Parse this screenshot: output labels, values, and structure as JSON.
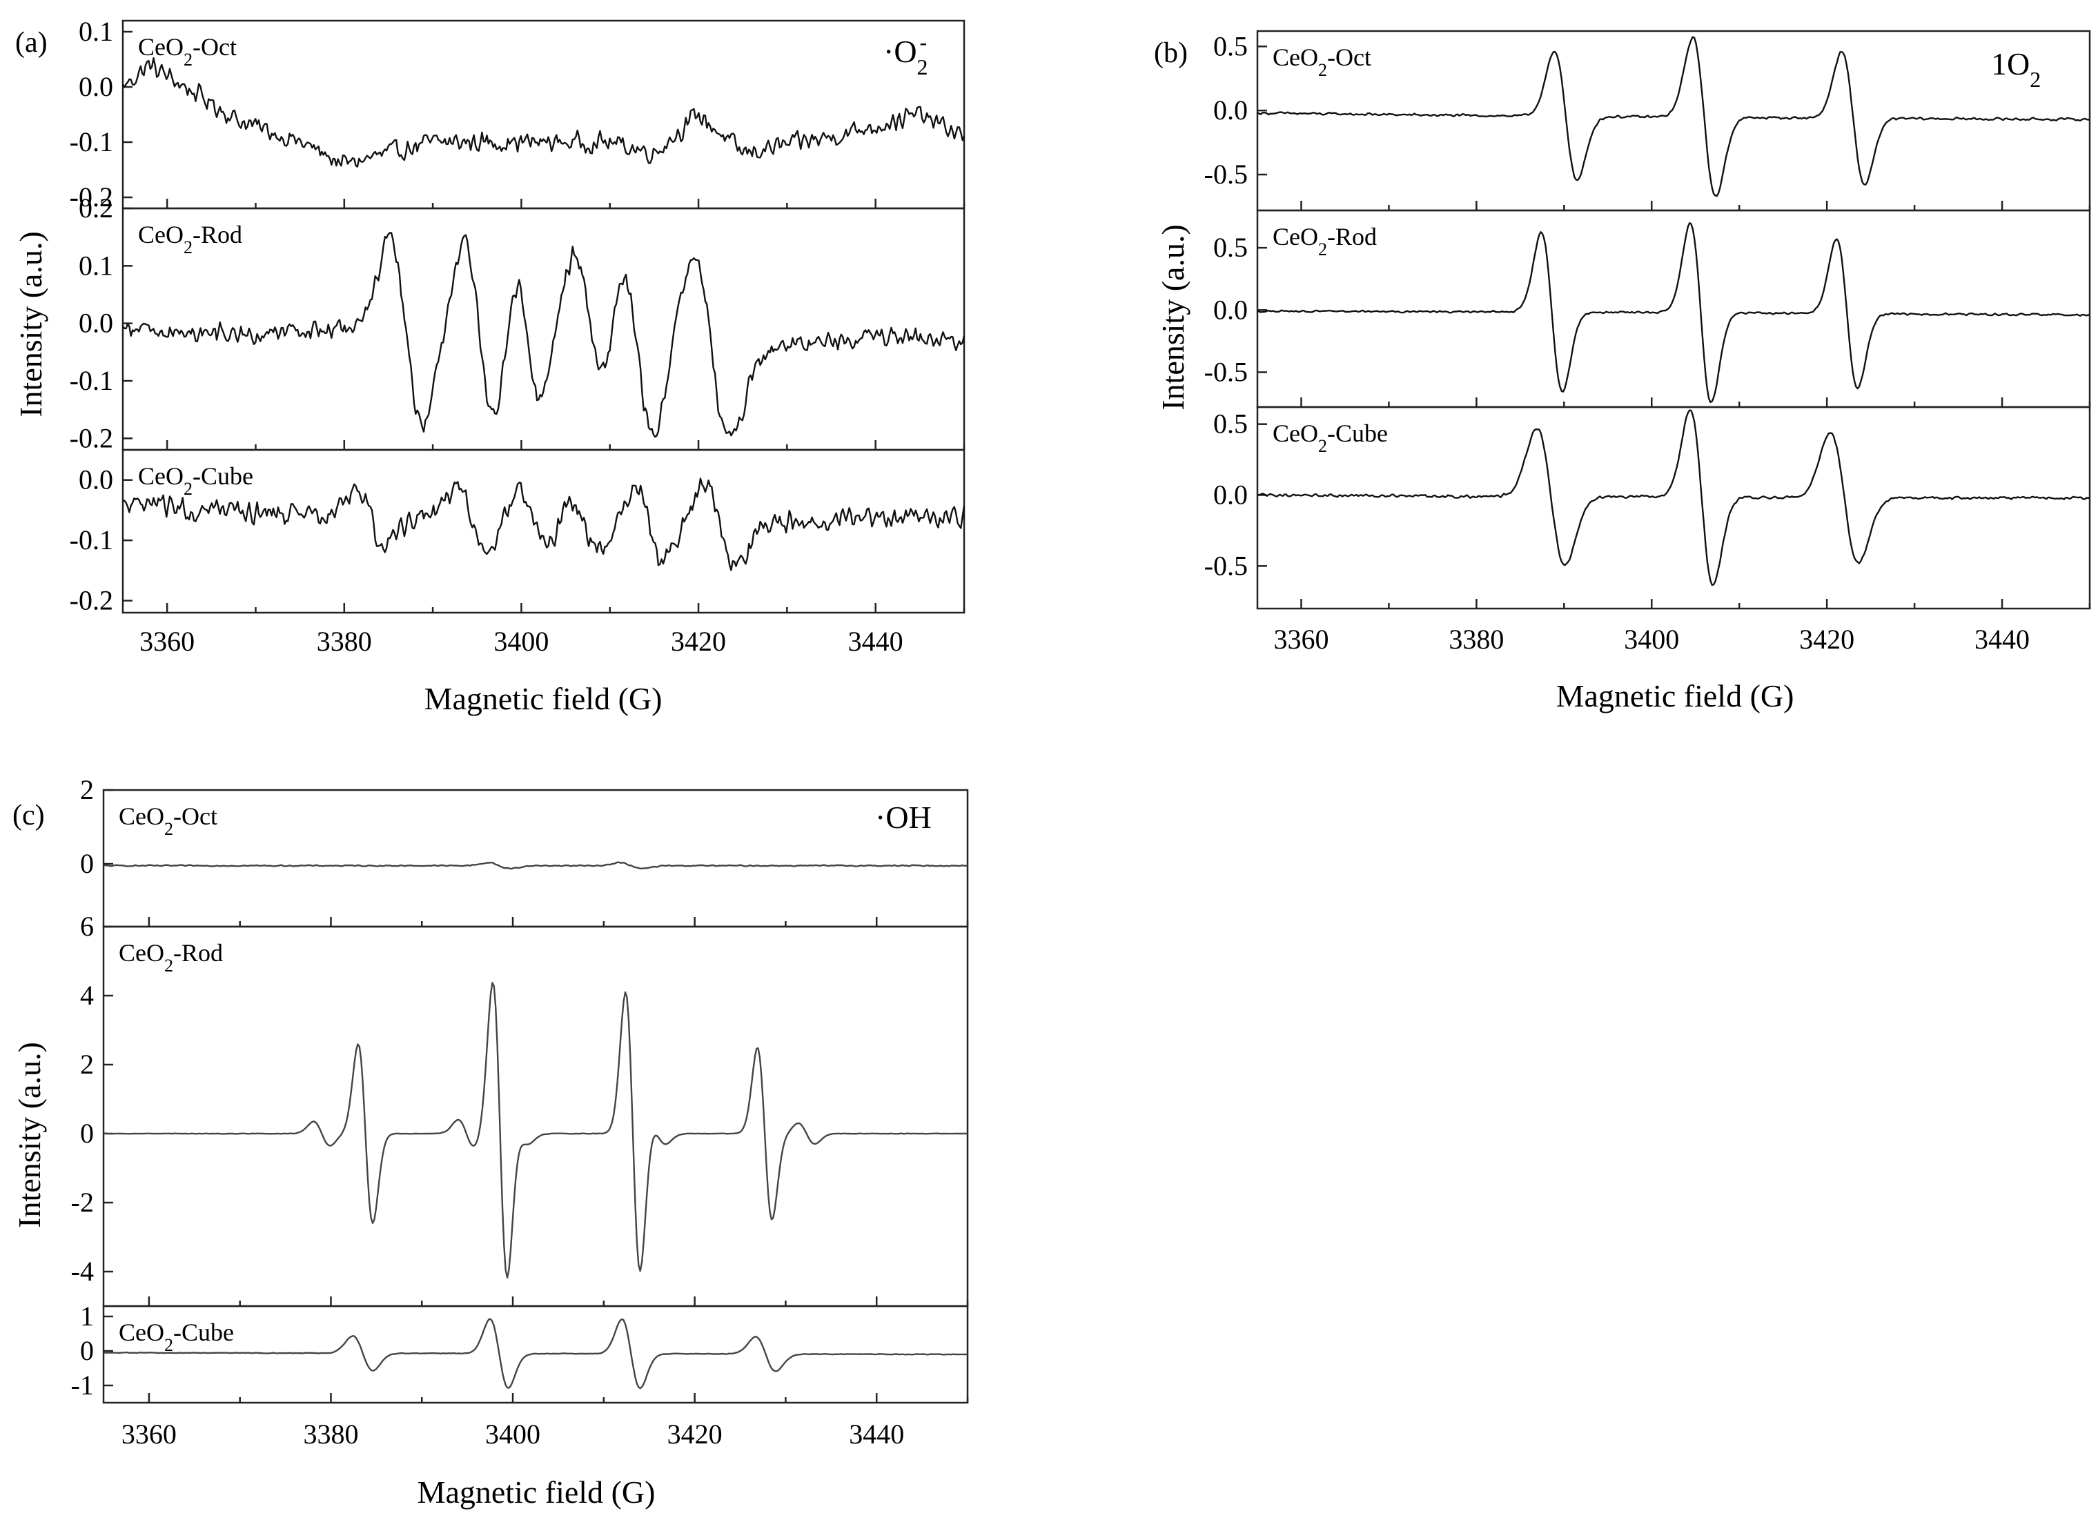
{
  "figure": {
    "panels": [
      {
        "panel_label": "(a)",
        "species_label": {
          "base": "·O",
          "sub": "2",
          "sup": "-"
        },
        "xlabel": "Magnetic field (G)",
        "ylabel": "Intensity (a.u.)"
      },
      {
        "panel_label": "(b)",
        "species_label": {
          "base": "1O",
          "sub": "2",
          "sup": ""
        },
        "xlabel": "Magnetic field (G)",
        "ylabel": "Intensity (a.u.)"
      },
      {
        "panel_label": "(c)",
        "species_label": {
          "base": "·OH",
          "sub": "",
          "sup": ""
        },
        "xlabel": "Magnetic field (G)",
        "ylabel": "Intensity (a.u.)"
      }
    ]
  },
  "chart_data": [
    {
      "type": "line",
      "panel": "(a)",
      "xlabel": "Magnetic field (G)",
      "ylabel": "Intensity (a.u.)",
      "xlim": [
        3355,
        3450
      ],
      "xticks": [
        3360,
        3380,
        3400,
        3420,
        3440
      ],
      "species": "·O2-",
      "subplots": [
        {
          "sample": {
            "base": "CeO",
            "sub": "2",
            "rest": "-Oct"
          },
          "ylim": [
            -0.22,
            0.12
          ],
          "yticks": [
            -0.2,
            -0.1,
            0.0,
            0.1
          ],
          "ytick_labels": [
            "-0.2",
            "-0.1",
            "0.0",
            "0.1"
          ],
          "noise": 0.022,
          "baseline": [
            [
              3355,
              0.0
            ],
            [
              3358,
              0.04
            ],
            [
              3362,
              0.0
            ],
            [
              3368,
              -0.06
            ],
            [
              3375,
              -0.1
            ],
            [
              3380,
              -0.14
            ],
            [
              3390,
              -0.1
            ],
            [
              3400,
              -0.1
            ],
            [
              3410,
              -0.1
            ],
            [
              3415,
              -0.12
            ],
            [
              3420,
              -0.05
            ],
            [
              3425,
              -0.12
            ],
            [
              3435,
              -0.09
            ],
            [
              3445,
              -0.05
            ],
            [
              3450,
              -0.09
            ]
          ],
          "lines": []
        },
        {
          "sample": {
            "base": "CeO",
            "sub": "2",
            "rest": "-Rod"
          },
          "ylim": [
            -0.22,
            0.2
          ],
          "yticks": [
            -0.2,
            -0.1,
            0.0,
            0.1,
            0.2
          ],
          "ytick_labels": [
            "-0.2",
            "-0.1",
            "0.0",
            "0.1",
            "0.2"
          ],
          "noise": 0.02,
          "baseline": [
            [
              3355,
              -0.01
            ],
            [
              3370,
              -0.02
            ],
            [
              3380,
              -0.01
            ],
            [
              3395,
              -0.02
            ],
            [
              3410,
              -0.02
            ],
            [
              3425,
              -0.05
            ],
            [
              3440,
              -0.02
            ],
            [
              3450,
              -0.03
            ]
          ],
          "lines": [
            [
              3387,
              0.16,
              1.8
            ],
            [
              3395.3,
              0.16,
              1.7
            ],
            [
              3400.7,
              0.12,
              1.5
            ],
            [
              3407.8,
              0.14,
              1.8
            ],
            [
              3413,
              0.16,
              1.9
            ],
            [
              3421.5,
              0.16,
              2.0
            ]
          ]
        },
        {
          "sample": {
            "base": "CeO",
            "sub": "2",
            "rest": "-Cube"
          },
          "ylim": [
            -0.22,
            0.05
          ],
          "yticks": [
            -0.2,
            -0.1,
            0.0
          ],
          "ytick_labels": [
            "-0.2",
            "-0.1",
            "0.0"
          ],
          "noise": 0.022,
          "baseline": [
            [
              3355,
              -0.04
            ],
            [
              3375,
              -0.06
            ],
            [
              3390,
              -0.06
            ],
            [
              3405,
              -0.07
            ],
            [
              3420,
              -0.08
            ],
            [
              3430,
              -0.07
            ],
            [
              3450,
              -0.06
            ]
          ],
          "lines": [
            [
              3383,
              0.05,
              1.6
            ],
            [
              3394.5,
              0.05,
              1.6
            ],
            [
              3401.5,
              0.05,
              1.6
            ],
            [
              3407,
              0.04,
              1.6
            ],
            [
              3414.5,
              0.06,
              1.5
            ],
            [
              3422.5,
              0.07,
              1.8
            ]
          ]
        }
      ]
    },
    {
      "type": "line",
      "panel": "(b)",
      "xlabel": "Magnetic field (G)",
      "ylabel": "Intensity (a.u.)",
      "xlim": [
        3355,
        3450
      ],
      "xticks": [
        3360,
        3380,
        3400,
        3420,
        3440
      ],
      "species": "1O2",
      "subplots": [
        {
          "sample": {
            "base": "CeO",
            "sub": "2",
            "rest": "-Oct"
          },
          "ylim": [
            -0.78,
            0.62
          ],
          "yticks": [
            -0.5,
            0.0,
            0.5
          ],
          "ytick_labels": [
            "-0.5",
            "0.0",
            "0.5"
          ],
          "noise": 0.012,
          "baseline": [
            [
              3355,
              -0.02
            ],
            [
              3380,
              -0.04
            ],
            [
              3400,
              -0.05
            ],
            [
              3420,
              -0.06
            ],
            [
              3450,
              -0.07
            ]
          ],
          "lines": [
            [
              3390.2,
              0.5,
              1.3
            ],
            [
              3406,
              0.62,
              1.3
            ],
            [
              3423,
              0.52,
              1.3
            ]
          ]
        },
        {
          "sample": {
            "base": "CeO",
            "sub": "2",
            "rest": "-Rod"
          },
          "ylim": [
            -0.78,
            0.8
          ],
          "yticks": [
            -0.5,
            0.0,
            0.5
          ],
          "ytick_labels": [
            "-0.5",
            "0.0",
            "0.5"
          ],
          "noise": 0.01,
          "baseline": [
            [
              3355,
              -0.01
            ],
            [
              3400,
              -0.02
            ],
            [
              3450,
              -0.04
            ]
          ],
          "lines": [
            [
              3388.6,
              0.64,
              1.2
            ],
            [
              3405.6,
              0.72,
              1.2
            ],
            [
              3422.3,
              0.6,
              1.2
            ]
          ]
        },
        {
          "sample": {
            "base": "CeO",
            "sub": "2",
            "rest": "-Cube"
          },
          "ylim": [
            -0.8,
            0.62
          ],
          "yticks": [
            -0.5,
            0.0,
            0.5
          ],
          "ytick_labels": [
            "-0.5",
            "0.0",
            "0.5"
          ],
          "noise": 0.012,
          "baseline": [
            [
              3355,
              0.0
            ],
            [
              3380,
              -0.01
            ],
            [
              3400,
              -0.01
            ],
            [
              3420,
              -0.02
            ],
            [
              3450,
              -0.02
            ]
          ],
          "lines": [
            [
              3388.5,
              0.48,
              1.6
            ],
            [
              3405.7,
              0.62,
              1.3
            ],
            [
              3422,
              0.46,
              1.6
            ]
          ]
        }
      ]
    },
    {
      "type": "line",
      "panel": "(c)",
      "xlabel": "Magnetic field (G)",
      "ylabel": "Intensity (a.u.)",
      "xlim": [
        3355,
        3450
      ],
      "xticks": [
        3360,
        3380,
        3400,
        3420,
        3440
      ],
      "species": "·OH",
      "subplots": [
        {
          "sample": {
            "base": "CeO",
            "sub": "2",
            "rest": "-Oct"
          },
          "ylim": [
            -1.7,
            2.0
          ],
          "yticks": [
            0,
            2
          ],
          "ytick_labels": [
            "0",
            "2"
          ],
          "noise": 0.02,
          "baseline": [
            [
              3355,
              -0.05
            ],
            [
              3450,
              -0.05
            ]
          ],
          "lines": [
            [
              3398.5,
              0.08,
              1.2
            ],
            [
              3413,
              0.08,
              1.2
            ]
          ]
        },
        {
          "sample": {
            "base": "CeO",
            "sub": "2",
            "rest": "-Rod"
          },
          "ylim": [
            -5.0,
            6.0
          ],
          "yticks": [
            -4,
            -2,
            0,
            2,
            4,
            6
          ],
          "ytick_labels": [
            "-4",
            "-2",
            "0",
            "2",
            "4",
            "6"
          ],
          "noise": 0.008,
          "baseline": [
            [
              3355,
              0.0
            ],
            [
              3450,
              0.0
            ]
          ],
          "lines": [
            [
              3379,
              0.35,
              0.9
            ],
            [
              3383.8,
              2.6,
              0.8
            ],
            [
              3394.9,
              0.4,
              0.9
            ],
            [
              3398.6,
              4.4,
              0.8
            ],
            [
              3400.8,
              0.3,
              0.9
            ],
            [
              3413.2,
              4.1,
              0.8
            ],
            [
              3415.9,
              0.3,
              0.9
            ],
            [
              3427.7,
              2.5,
              0.8
            ],
            [
              3432.3,
              0.3,
              0.9
            ]
          ]
        },
        {
          "sample": {
            "base": "CeO",
            "sub": "2",
            "rest": "-Cube"
          },
          "ylim": [
            -1.5,
            1.3
          ],
          "yticks": [
            -1,
            0,
            1
          ],
          "ytick_labels": [
            "-1",
            "0",
            "1"
          ],
          "noise": 0.01,
          "baseline": [
            [
              3355,
              -0.05
            ],
            [
              3450,
              -0.1
            ]
          ],
          "lines": [
            [
              3383.5,
              0.5,
              1.1
            ],
            [
              3398.5,
              1.0,
              1.0
            ],
            [
              3413,
              1.0,
              1.0
            ],
            [
              3427.8,
              0.5,
              1.1
            ]
          ]
        }
      ]
    }
  ]
}
